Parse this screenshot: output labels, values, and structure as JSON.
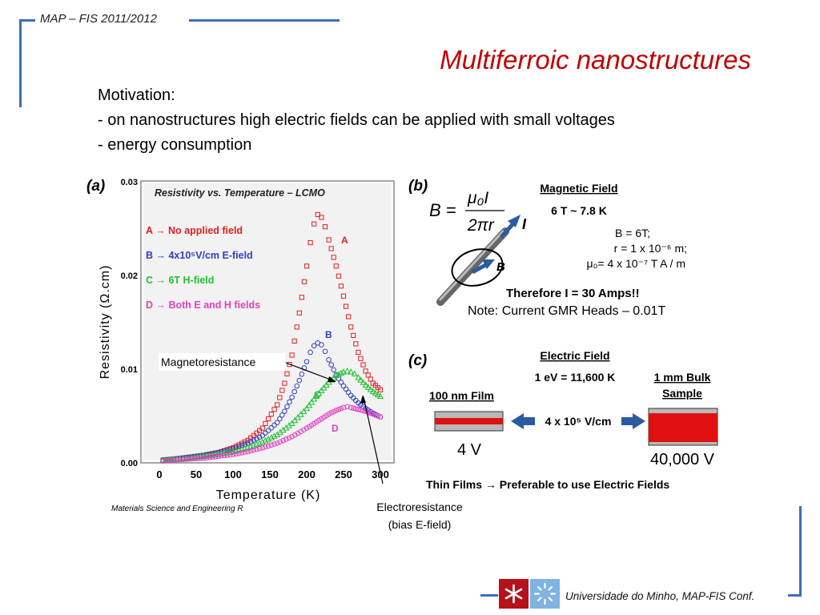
{
  "header": {
    "course": "MAP – FIS 2011/2012",
    "title": "Multiferroic nanostructures"
  },
  "motivation": {
    "heading": "Motivation:",
    "points": [
      "- on nanostructures high electric fields can be applied with small voltages",
      "- energy consumption"
    ]
  },
  "panel_a": {
    "label": "(a)",
    "chart_data": {
      "type": "scatter",
      "title": "Resistivity vs. Temperature – LCMO",
      "xlabel": "Temperature (K)",
      "ylabel": "Resistivity (Ω.cm)",
      "xlim": [
        0,
        300
      ],
      "ylim": [
        0.0,
        0.03
      ],
      "x_ticks": [
        "0",
        "50",
        "100",
        "150",
        "200",
        "250",
        "300"
      ],
      "y_ticks": [
        "0.00",
        "0.01",
        "0.02",
        "0.03"
      ],
      "legend": [
        "A → No applied field",
        "B → 4x10⁵V/cm E-field",
        "C → 6T H-field",
        "D → Both E and H fields"
      ],
      "series": [
        {
          "name": "A",
          "color": "#e02020",
          "marker": "square",
          "x": [
            5,
            20,
            40,
            60,
            80,
            100,
            120,
            140,
            160,
            170,
            180,
            190,
            200,
            205,
            210,
            215,
            220,
            225,
            230,
            240,
            250,
            260,
            270,
            280,
            290,
            300
          ],
          "y": [
            0.0003,
            0.0004,
            0.0006,
            0.0008,
            0.0011,
            0.0016,
            0.0024,
            0.0037,
            0.0062,
            0.0085,
            0.0115,
            0.016,
            0.021,
            0.0235,
            0.0255,
            0.0265,
            0.0262,
            0.0252,
            0.0238,
            0.021,
            0.0178,
            0.0145,
            0.0118,
            0.0098,
            0.0085,
            0.0078
          ]
        },
        {
          "name": "B",
          "color": "#3040c0",
          "marker": "circle",
          "x": [
            5,
            20,
            40,
            60,
            80,
            100,
            120,
            140,
            160,
            170,
            180,
            190,
            200,
            205,
            210,
            215,
            220,
            225,
            230,
            240,
            250,
            260,
            270,
            280,
            290,
            300
          ],
          "y": [
            0.0003,
            0.0004,
            0.0006,
            0.0008,
            0.0011,
            0.0015,
            0.0021,
            0.0029,
            0.0043,
            0.0055,
            0.007,
            0.0088,
            0.0108,
            0.0118,
            0.0125,
            0.0128,
            0.0126,
            0.0119,
            0.011,
            0.0094,
            0.0082,
            0.0072,
            0.0064,
            0.0058,
            0.0053,
            0.0049
          ]
        },
        {
          "name": "C",
          "color": "#20c030",
          "marker": "triangle",
          "x": [
            5,
            20,
            40,
            60,
            80,
            100,
            120,
            140,
            160,
            180,
            200,
            210,
            220,
            230,
            240,
            250,
            255,
            260,
            265,
            270,
            280,
            290,
            300
          ],
          "y": [
            0.0003,
            0.0004,
            0.0005,
            0.0007,
            0.0009,
            0.0012,
            0.0016,
            0.0022,
            0.003,
            0.0042,
            0.0058,
            0.0068,
            0.0077,
            0.0086,
            0.0093,
            0.0097,
            0.0098,
            0.0097,
            0.0095,
            0.0091,
            0.0083,
            0.0076,
            0.0071
          ]
        },
        {
          "name": "D",
          "color": "#e040c0",
          "marker": "circle",
          "x": [
            5,
            20,
            40,
            60,
            80,
            100,
            120,
            140,
            160,
            180,
            200,
            210,
            220,
            230,
            240,
            250,
            255,
            260,
            270,
            280,
            290,
            300
          ],
          "y": [
            0.0002,
            0.0003,
            0.0004,
            0.0005,
            0.0007,
            0.0009,
            0.0012,
            0.0016,
            0.0021,
            0.0028,
            0.0037,
            0.0042,
            0.0047,
            0.0052,
            0.0056,
            0.0059,
            0.006,
            0.0059,
            0.0057,
            0.0055,
            0.0052,
            0.0049
          ]
        }
      ],
      "series_labels": [
        "A",
        "B",
        "C",
        "D"
      ]
    },
    "annotations": {
      "magneto": "Magnetoresistance",
      "electro_1": "Electroresistance",
      "electro_2": "(bias E-field)"
    },
    "source": "Materials Science and Engineering R"
  },
  "panel_b": {
    "label": "(b)",
    "formula_lhs": "B =",
    "formula_num": "μ₀I",
    "formula_den": "2πr",
    "current_symbol": "I",
    "field_symbol": "B",
    "heading": "Magnetic Field",
    "range": "6 T ~ 7.8 K",
    "lines": [
      "B = 6T;",
      "r = 1 x 10⁻⁶ m;",
      "μ₀= 4 x 10⁻⁷ T A / m"
    ],
    "therefore": "Therefore I = 30 Amps!!",
    "note": "Note: Current GMR Heads – 0.01T"
  },
  "panel_c": {
    "label": "(c)",
    "heading": "Electric Field",
    "conversion": "1 eV = 11,600 K",
    "film_label": "100 nm Film",
    "bulk_label_1": "1 mm Bulk",
    "bulk_label_2": "Sample",
    "field_value": "4 x 10⁵ V/cm",
    "film_voltage": "4 V",
    "bulk_voltage": "40,000 V",
    "conclusion": "Thin Films → Preferable to use Electric Fields"
  },
  "footer": {
    "institution": "Universidade do Minho, MAP-FIS Conf."
  },
  "colors": {
    "accent": "#3b6fb6",
    "title": "#c00000",
    "logo_red": "#b5121b",
    "logo_blue": "#7fb3e0"
  }
}
